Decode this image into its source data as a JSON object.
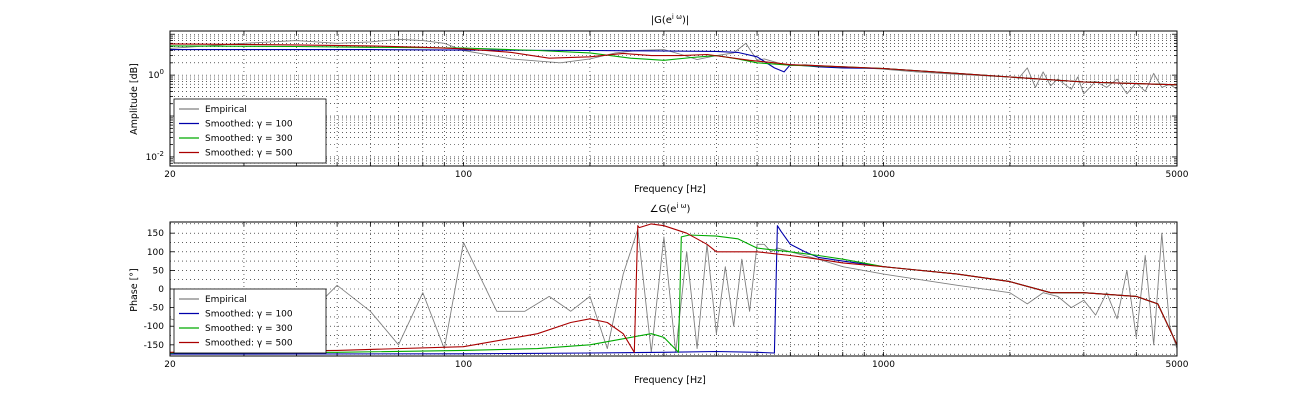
{
  "chart_data": [
    {
      "type": "line",
      "title": "|G(e",
      "title_sup": "i ω",
      "title_end": ")|",
      "xlabel": "Frequency [Hz]",
      "ylabel": "Amplitude [dB]",
      "xscale": "log",
      "yscale": "log",
      "xlim": [
        20,
        5000
      ],
      "ylim": [
        0.006,
        12
      ],
      "xticks": [
        20,
        100,
        1000,
        5000
      ],
      "xtick_labels": [
        "20",
        "100",
        "1000",
        "5000"
      ],
      "yticks": [
        1,
        0.01
      ],
      "ytick_labels": [
        {
          "base": "10",
          "exp": "0"
        },
        {
          "base": "10",
          "exp": "-2"
        }
      ],
      "grid": true,
      "legend_placement": "lower-left",
      "series": [
        {
          "name": "Empirical",
          "color": "#808080",
          "x": [
            20,
            30,
            40,
            50,
            60,
            70,
            80,
            90,
            100,
            130,
            170,
            200,
            230,
            260,
            300,
            330,
            360,
            400,
            440,
            470,
            500,
            520,
            560,
            600,
            650,
            700,
            800,
            900,
            1000,
            1200,
            1500,
            2000,
            2100,
            2200,
            2300,
            2400,
            2500,
            2600,
            2700,
            2800,
            2900,
            3000,
            3200,
            3400,
            3600,
            3800,
            4000,
            4200,
            4400,
            4600,
            4800,
            5000
          ],
          "y": [
            4.5,
            6,
            7,
            6,
            6.5,
            7.5,
            7,
            6,
            4,
            2.5,
            2,
            2.5,
            3.5,
            4,
            4.2,
            3.2,
            2.4,
            3,
            3.5,
            6,
            2.3,
            2.5,
            2,
            1.7,
            1.8,
            1.7,
            1.6,
            1.5,
            1.4,
            1.2,
            1.05,
            0.9,
            0.85,
            1.5,
            0.5,
            1.2,
            0.55,
            0.8,
            0.6,
            0.45,
            0.9,
            0.35,
            0.7,
            0.5,
            0.8,
            0.35,
            0.65,
            0.4,
            1.1,
            0.5,
            0.6,
            0.45
          ]
        },
        {
          "name": "Smoothed: γ = 100",
          "color": "#0000aa",
          "x": [
            20,
            60,
            100,
            200,
            300,
            400,
            450,
            500,
            550,
            580,
            600,
            650,
            700,
            800,
            1000,
            1500,
            2000,
            3000,
            4000,
            5000
          ],
          "y": [
            4.2,
            4.2,
            4.1,
            4.0,
            3.9,
            3.8,
            3.6,
            2.8,
            1.5,
            1.2,
            1.8,
            1.7,
            1.6,
            1.5,
            1.45,
            1.1,
            0.9,
            0.68,
            0.62,
            0.58
          ]
        },
        {
          "name": "Smoothed: γ = 300",
          "color": "#00aa00",
          "x": [
            20,
            40,
            60,
            100,
            150,
            200,
            250,
            300,
            350,
            400,
            450,
            500,
            600,
            800,
            1000,
            1500,
            2000,
            3000,
            4000,
            5000
          ],
          "y": [
            5.2,
            5.0,
            4.8,
            4.6,
            4.0,
            3.5,
            2.6,
            2.3,
            2.7,
            3.0,
            2.5,
            2.0,
            1.75,
            1.6,
            1.45,
            1.1,
            0.9,
            0.68,
            0.62,
            0.58
          ]
        },
        {
          "name": "Smoothed: γ = 500",
          "color": "#aa0000",
          "x": [
            20,
            40,
            60,
            80,
            100,
            130,
            160,
            200,
            240,
            280,
            330,
            380,
            430,
            480,
            550,
            600,
            700,
            800,
            1000,
            1500,
            2000,
            3000,
            4000,
            5000
          ],
          "y": [
            5.8,
            5.5,
            5.2,
            4.8,
            4.4,
            3.6,
            2.6,
            2.8,
            3.4,
            3.0,
            3.0,
            3.2,
            2.7,
            2.3,
            2.0,
            1.8,
            1.7,
            1.6,
            1.45,
            1.1,
            0.9,
            0.68,
            0.62,
            0.58
          ]
        }
      ]
    },
    {
      "type": "line",
      "title": "∠G(e",
      "title_sup": "i ω",
      "title_end": ")",
      "xlabel": "Frequency [Hz]",
      "ylabel": "Phase [°]",
      "xscale": "log",
      "yscale": "linear",
      "xlim": [
        20,
        5000
      ],
      "ylim": [
        -180,
        180
      ],
      "xticks": [
        20,
        100,
        1000,
        5000
      ],
      "xtick_labels": [
        "20",
        "100",
        "1000",
        "5000"
      ],
      "yticks": [
        -150,
        -100,
        -50,
        0,
        50,
        100,
        150
      ],
      "ytick_labels": [
        "-150",
        "-100",
        "-50",
        "0",
        "50",
        "100",
        "150"
      ],
      "grid": true,
      "legend_placement": "lower-left",
      "series": [
        {
          "name": "Empirical",
          "color": "#808080",
          "x": [
            20,
            30,
            40,
            50,
            60,
            70,
            80,
            90,
            100,
            120,
            140,
            160,
            180,
            200,
            220,
            240,
            260,
            280,
            300,
            320,
            340,
            360,
            380,
            400,
            420,
            440,
            460,
            480,
            500,
            520,
            540,
            560,
            600,
            700,
            800,
            1000,
            1500,
            2000,
            2200,
            2400,
            2600,
            2800,
            3000,
            3200,
            3400,
            3600,
            3800,
            4000,
            4200,
            4400,
            4600,
            4800,
            5000
          ],
          "y": [
            -80,
            -130,
            -100,
            10,
            -60,
            -150,
            -10,
            -160,
            125,
            -60,
            -60,
            -20,
            -60,
            -20,
            -160,
            40,
            160,
            -170,
            140,
            -170,
            100,
            -160,
            120,
            -120,
            60,
            -100,
            80,
            -60,
            120,
            120,
            100,
            110,
            100,
            80,
            60,
            40,
            10,
            -10,
            -40,
            -10,
            -20,
            -50,
            -30,
            -70,
            -10,
            -80,
            50,
            -130,
            90,
            -150,
            150,
            -100,
            -160
          ]
        },
        {
          "name": "Smoothed: γ = 100",
          "color": "#0000aa",
          "x": [
            20,
            100,
            200,
            300,
            400,
            500,
            550,
            559,
            570,
            600,
            650,
            700,
            800,
            1000,
            1500,
            2000,
            2500,
            3000,
            4000,
            4500,
            5000
          ],
          "y": [
            -175,
            -174,
            -172,
            -170,
            -168,
            -170,
            -172,
            170,
            155,
            120,
            100,
            85,
            75,
            60,
            40,
            20,
            -10,
            -10,
            -20,
            -40,
            -150
          ]
        },
        {
          "name": "Smoothed: γ = 300",
          "color": "#00aa00",
          "x": [
            20,
            50,
            100,
            150,
            200,
            250,
            280,
            300,
            325,
            330,
            345,
            400,
            450,
            500,
            600,
            700,
            800,
            1000,
            1500,
            2000,
            2500,
            3000,
            4000,
            4500,
            5000
          ],
          "y": [
            -172,
            -170,
            -165,
            -160,
            -150,
            -130,
            -120,
            -130,
            -170,
            140,
            145,
            142,
            135,
            110,
            100,
            90,
            80,
            60,
            40,
            20,
            -10,
            -10,
            -20,
            -40,
            -150
          ]
        },
        {
          "name": "Smoothed: γ = 500",
          "color": "#aa0000",
          "x": [
            20,
            50,
            100,
            150,
            180,
            200,
            220,
            240,
            255,
            260,
            262,
            280,
            300,
            340,
            380,
            400,
            450,
            500,
            600,
            700,
            800,
            1000,
            1500,
            2000,
            2500,
            3000,
            4000,
            4500,
            5000
          ],
          "y": [
            -170,
            -165,
            -155,
            -120,
            -90,
            -80,
            -90,
            -120,
            -170,
            170,
            165,
            175,
            170,
            150,
            120,
            100,
            100,
            100,
            90,
            80,
            70,
            60,
            40,
            20,
            -10,
            -10,
            -20,
            -40,
            -150
          ]
        }
      ]
    }
  ]
}
